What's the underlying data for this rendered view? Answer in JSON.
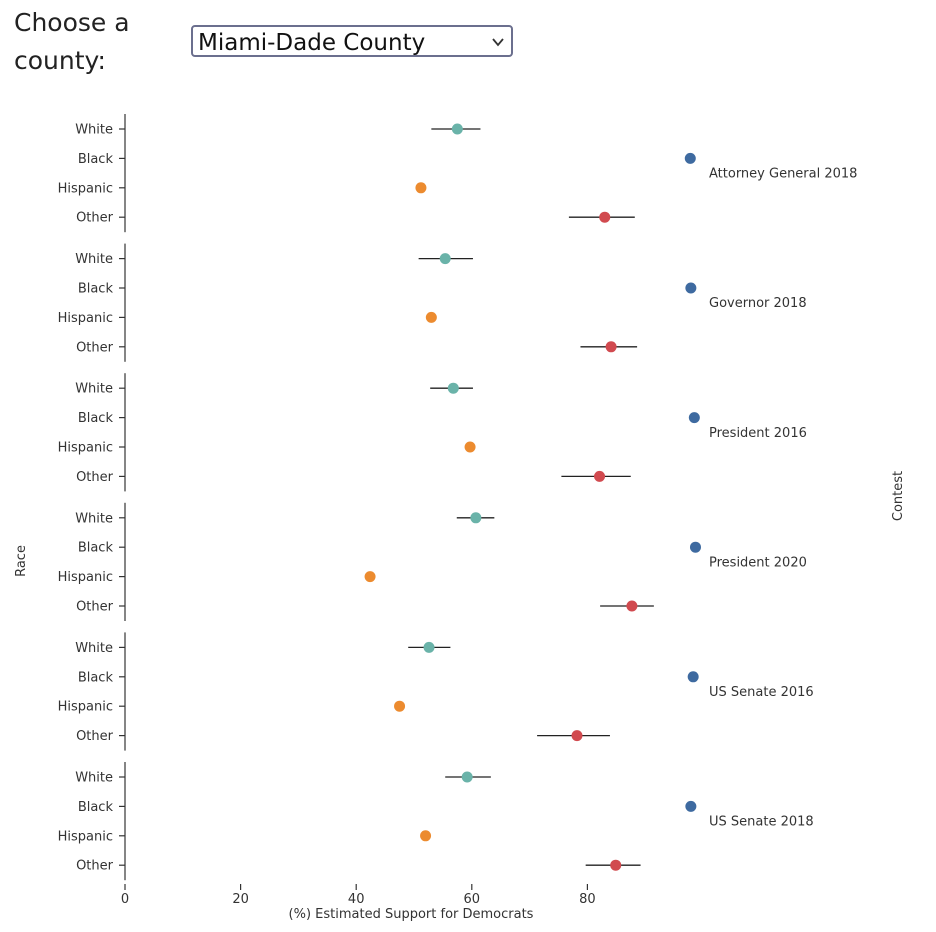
{
  "controls": {
    "county_label": "Choose a county:",
    "county_value": "Miami-Dade County"
  },
  "colors": {
    "White": "#6ab3a9",
    "Black": "#3e6aa0",
    "Hispanic": "#ec8b2f",
    "Other": "#d14a4f"
  },
  "chart_data": {
    "type": "scatter",
    "title": "",
    "xlabel": "(%) Estimated Support for Democrats",
    "ylabel": "Race",
    "right_label": "Contest",
    "xlim": [
      0,
      100
    ],
    "xticks": [
      0,
      20,
      40,
      60,
      80
    ],
    "races": [
      "White",
      "Black",
      "Hispanic",
      "Other"
    ],
    "contests": [
      {
        "name": "Attorney General 2018",
        "points": [
          {
            "race": "White",
            "value": 57.5,
            "low": 53.0,
            "high": 61.5
          },
          {
            "race": "Black",
            "value": 97.8,
            "low": 97.0,
            "high": 98.5
          },
          {
            "race": "Hispanic",
            "value": 51.2,
            "low": 50.5,
            "high": 52.0
          },
          {
            "race": "Other",
            "value": 83.0,
            "low": 76.8,
            "high": 88.2
          }
        ]
      },
      {
        "name": "Governor 2018",
        "points": [
          {
            "race": "White",
            "value": 55.4,
            "low": 50.8,
            "high": 60.2
          },
          {
            "race": "Black",
            "value": 97.9,
            "low": 97.2,
            "high": 98.6
          },
          {
            "race": "Hispanic",
            "value": 53.0,
            "low": 52.2,
            "high": 53.8
          },
          {
            "race": "Other",
            "value": 84.1,
            "low": 78.8,
            "high": 88.6
          }
        ]
      },
      {
        "name": "President 2016",
        "points": [
          {
            "race": "White",
            "value": 56.8,
            "low": 52.8,
            "high": 60.2
          },
          {
            "race": "Black",
            "value": 98.5,
            "low": 97.8,
            "high": 99.2
          },
          {
            "race": "Hispanic",
            "value": 59.7,
            "low": 59.0,
            "high": 60.4
          },
          {
            "race": "Other",
            "value": 82.1,
            "low": 75.5,
            "high": 87.5
          }
        ]
      },
      {
        "name": "President 2020",
        "points": [
          {
            "race": "White",
            "value": 60.7,
            "low": 57.4,
            "high": 63.9
          },
          {
            "race": "Black",
            "value": 98.7,
            "low": 98.0,
            "high": 99.4
          },
          {
            "race": "Hispanic",
            "value": 42.4,
            "low": 41.6,
            "high": 43.2
          },
          {
            "race": "Other",
            "value": 87.7,
            "low": 82.2,
            "high": 91.5
          }
        ]
      },
      {
        "name": "US Senate 2016",
        "points": [
          {
            "race": "White",
            "value": 52.6,
            "low": 49.0,
            "high": 56.3
          },
          {
            "race": "Black",
            "value": 98.3,
            "low": 97.6,
            "high": 99.0
          },
          {
            "race": "Hispanic",
            "value": 47.5,
            "low": 46.8,
            "high": 48.2
          },
          {
            "race": "Other",
            "value": 78.2,
            "low": 71.3,
            "high": 83.9
          }
        ]
      },
      {
        "name": "US Senate 2018",
        "points": [
          {
            "race": "White",
            "value": 59.2,
            "low": 55.4,
            "high": 63.3
          },
          {
            "race": "Black",
            "value": 97.9,
            "low": 97.2,
            "high": 98.6
          },
          {
            "race": "Hispanic",
            "value": 52.0,
            "low": 51.3,
            "high": 52.8
          },
          {
            "race": "Other",
            "value": 84.9,
            "low": 79.7,
            "high": 89.2
          }
        ]
      }
    ]
  }
}
